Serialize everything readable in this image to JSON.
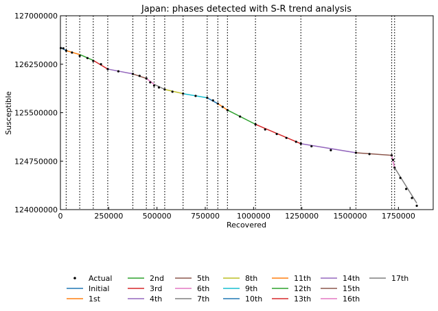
{
  "chart_data": {
    "type": "line",
    "title": "Japan: phases detected with S-R trend analysis",
    "xlabel": "Recovered",
    "ylabel": "Susceptible",
    "xlim": [
      0,
      1930000
    ],
    "ylim": [
      124000000,
      127000000
    ],
    "x_ticks": [
      0,
      250000,
      500000,
      750000,
      1000000,
      1250000,
      1500000,
      1750000
    ],
    "x_tick_labels": [
      "0",
      "250000",
      "500000",
      "750000",
      "1000000",
      "1250000",
      "1500000",
      "1750000"
    ],
    "y_ticks": [
      124000000,
      124750000,
      125500000,
      126250000,
      127000000
    ],
    "y_tick_labels": [
      "124000000",
      "124750000",
      "125500000",
      "126250000",
      "127000000"
    ],
    "grid": false,
    "legend_position": "bottom",
    "change_points": [
      30000,
      100000,
      170000,
      245000,
      375000,
      445000,
      485000,
      540000,
      635000,
      760000,
      815000,
      865000,
      1010000,
      1245000,
      1530000,
      1715000,
      1730000
    ],
    "actual": {
      "name": "Actual",
      "x": [
        2000,
        15000,
        30000,
        60000,
        100000,
        140000,
        170000,
        210000,
        245000,
        300000,
        375000,
        410000,
        445000,
        465000,
        485000,
        510000,
        540000,
        580000,
        635000,
        700000,
        760000,
        790000,
        815000,
        840000,
        865000,
        930000,
        1010000,
        1060000,
        1120000,
        1170000,
        1220000,
        1245000,
        1300000,
        1400000,
        1530000,
        1600000,
        1715000,
        1722000,
        1730000,
        1760000,
        1790000,
        1820000,
        1845000
      ],
      "y": [
        126500000,
        126495000,
        126460000,
        126430000,
        126380000,
        126345000,
        126300000,
        126250000,
        126175000,
        126140000,
        126100000,
        126070000,
        126030000,
        125970000,
        125920000,
        125890000,
        125860000,
        125825000,
        125795000,
        125760000,
        125730000,
        125690000,
        125640000,
        125590000,
        125540000,
        125440000,
        125320000,
        125240000,
        125170000,
        125110000,
        125050000,
        125020000,
        124980000,
        124920000,
        124880000,
        124860000,
        124840000,
        124770000,
        124650000,
        124490000,
        124320000,
        124180000,
        124060000
      ]
    },
    "series": [
      {
        "name": "Initial",
        "color": "#1f77b4",
        "x": [
          0,
          30000
        ],
        "y": [
          126510000,
          126460000
        ]
      },
      {
        "name": "1st",
        "color": "#ff7f0e",
        "x": [
          30000,
          100000
        ],
        "y": [
          126460000,
          126400000
        ]
      },
      {
        "name": "2nd",
        "color": "#2ca02c",
        "x": [
          100000,
          170000
        ],
        "y": [
          126400000,
          126310000
        ]
      },
      {
        "name": "3rd",
        "color": "#d62728",
        "x": [
          170000,
          245000
        ],
        "y": [
          126310000,
          126175000
        ]
      },
      {
        "name": "4th",
        "color": "#9467bd",
        "x": [
          245000,
          375000
        ],
        "y": [
          126175000,
          126100000
        ]
      },
      {
        "name": "5th",
        "color": "#8c564b",
        "x": [
          375000,
          445000
        ],
        "y": [
          126100000,
          126030000
        ]
      },
      {
        "name": "6th",
        "color": "#e377c2",
        "x": [
          445000,
          485000
        ],
        "y": [
          126030000,
          125940000
        ]
      },
      {
        "name": "7th",
        "color": "#7f7f7f",
        "x": [
          485000,
          540000
        ],
        "y": [
          125940000,
          125860000
        ]
      },
      {
        "name": "8th",
        "color": "#bcbd22",
        "x": [
          540000,
          635000
        ],
        "y": [
          125860000,
          125795000
        ]
      },
      {
        "name": "9th",
        "color": "#17becf",
        "x": [
          635000,
          760000
        ],
        "y": [
          125795000,
          125730000
        ]
      },
      {
        "name": "10th",
        "color": "#1f77b4",
        "x": [
          760000,
          815000
        ],
        "y": [
          125730000,
          125640000
        ]
      },
      {
        "name": "11th",
        "color": "#ff7f0e",
        "x": [
          815000,
          865000
        ],
        "y": [
          125640000,
          125540000
        ]
      },
      {
        "name": "12th",
        "color": "#2ca02c",
        "x": [
          865000,
          1010000
        ],
        "y": [
          125540000,
          125320000
        ]
      },
      {
        "name": "13th",
        "color": "#d62728",
        "x": [
          1010000,
          1245000
        ],
        "y": [
          125320000,
          125020000
        ]
      },
      {
        "name": "14th",
        "color": "#9467bd",
        "x": [
          1245000,
          1530000
        ],
        "y": [
          125020000,
          124880000
        ]
      },
      {
        "name": "15th",
        "color": "#8c564b",
        "x": [
          1530000,
          1715000
        ],
        "y": [
          124880000,
          124840000
        ]
      },
      {
        "name": "16th",
        "color": "#e377c2",
        "x": [
          1715000,
          1730000
        ],
        "y": [
          124840000,
          124650000
        ]
      },
      {
        "name": "17th",
        "color": "#7f7f7f",
        "x": [
          1730000,
          1845000
        ],
        "y": [
          124650000,
          124100000
        ]
      }
    ]
  }
}
